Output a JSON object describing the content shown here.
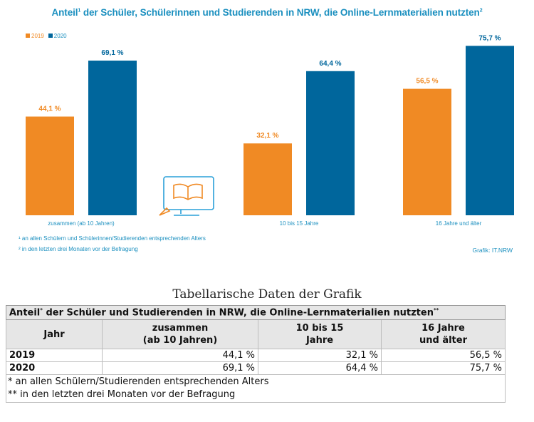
{
  "chart": {
    "title_main": "Anteil",
    "title_sup": "1",
    "title_rest": " der Schüler, Schülerinnen und Studierenden in NRW, die Online-Lernmaterialien nutzten",
    "title_sup2": "2",
    "legend": [
      "2019",
      "2020"
    ],
    "footnote1": "¹ an allen Schülern und Schülerinnen/Studierenden entsprechenden Alters",
    "footnote2": "² in den letzten drei Monaten vor der Befragung",
    "credit": "Grafik: IT.NRW",
    "colors": {
      "2019": "#f08a24",
      "2020": "#00669c",
      "text": "#1a8fbf"
    },
    "icon": "laptop-book-icon"
  },
  "chart_data": {
    "type": "bar",
    "categories": [
      "zusammen (ab 10 Jahren)",
      "10 bis 15 Jahre",
      "16 Jahre und älter"
    ],
    "series": [
      {
        "name": "2019",
        "values": [
          44.1,
          32.1,
          56.5
        ],
        "labels": [
          "44,1 %",
          "32,1 %",
          "56,5 %"
        ]
      },
      {
        "name": "2020",
        "values": [
          69.1,
          64.4,
          75.7
        ],
        "labels": [
          "69,1 %",
          "64,4 %",
          "75,7 %"
        ]
      }
    ],
    "ylim": [
      0,
      100
    ],
    "grid": false,
    "legend_position": "top-left"
  },
  "table": {
    "caption": "Tabellarische Daten der Grafik",
    "title_a": "Anteil",
    "title_sup": "*",
    "title_b": " der Schüler und Studierenden in NRW, die Online-Lernmaterialien nutzten",
    "title_sup2": "**",
    "headers": [
      "Jahr",
      "zusammen\n(ab 10 Jahren)",
      "10 bis 15\nJahre",
      "16  Jahre\nund älter"
    ],
    "rows": [
      {
        "year": "2019",
        "cells": [
          "44,1 %",
          "32,1 %",
          "56,5 %"
        ]
      },
      {
        "year": "2020",
        "cells": [
          "69,1 %",
          "64,4 %",
          "75,7 %"
        ]
      }
    ],
    "note1": "* an allen Schülern/Studierenden entsprechenden Alters",
    "note2": "** in den letzten drei Monaten vor der Befragung"
  }
}
